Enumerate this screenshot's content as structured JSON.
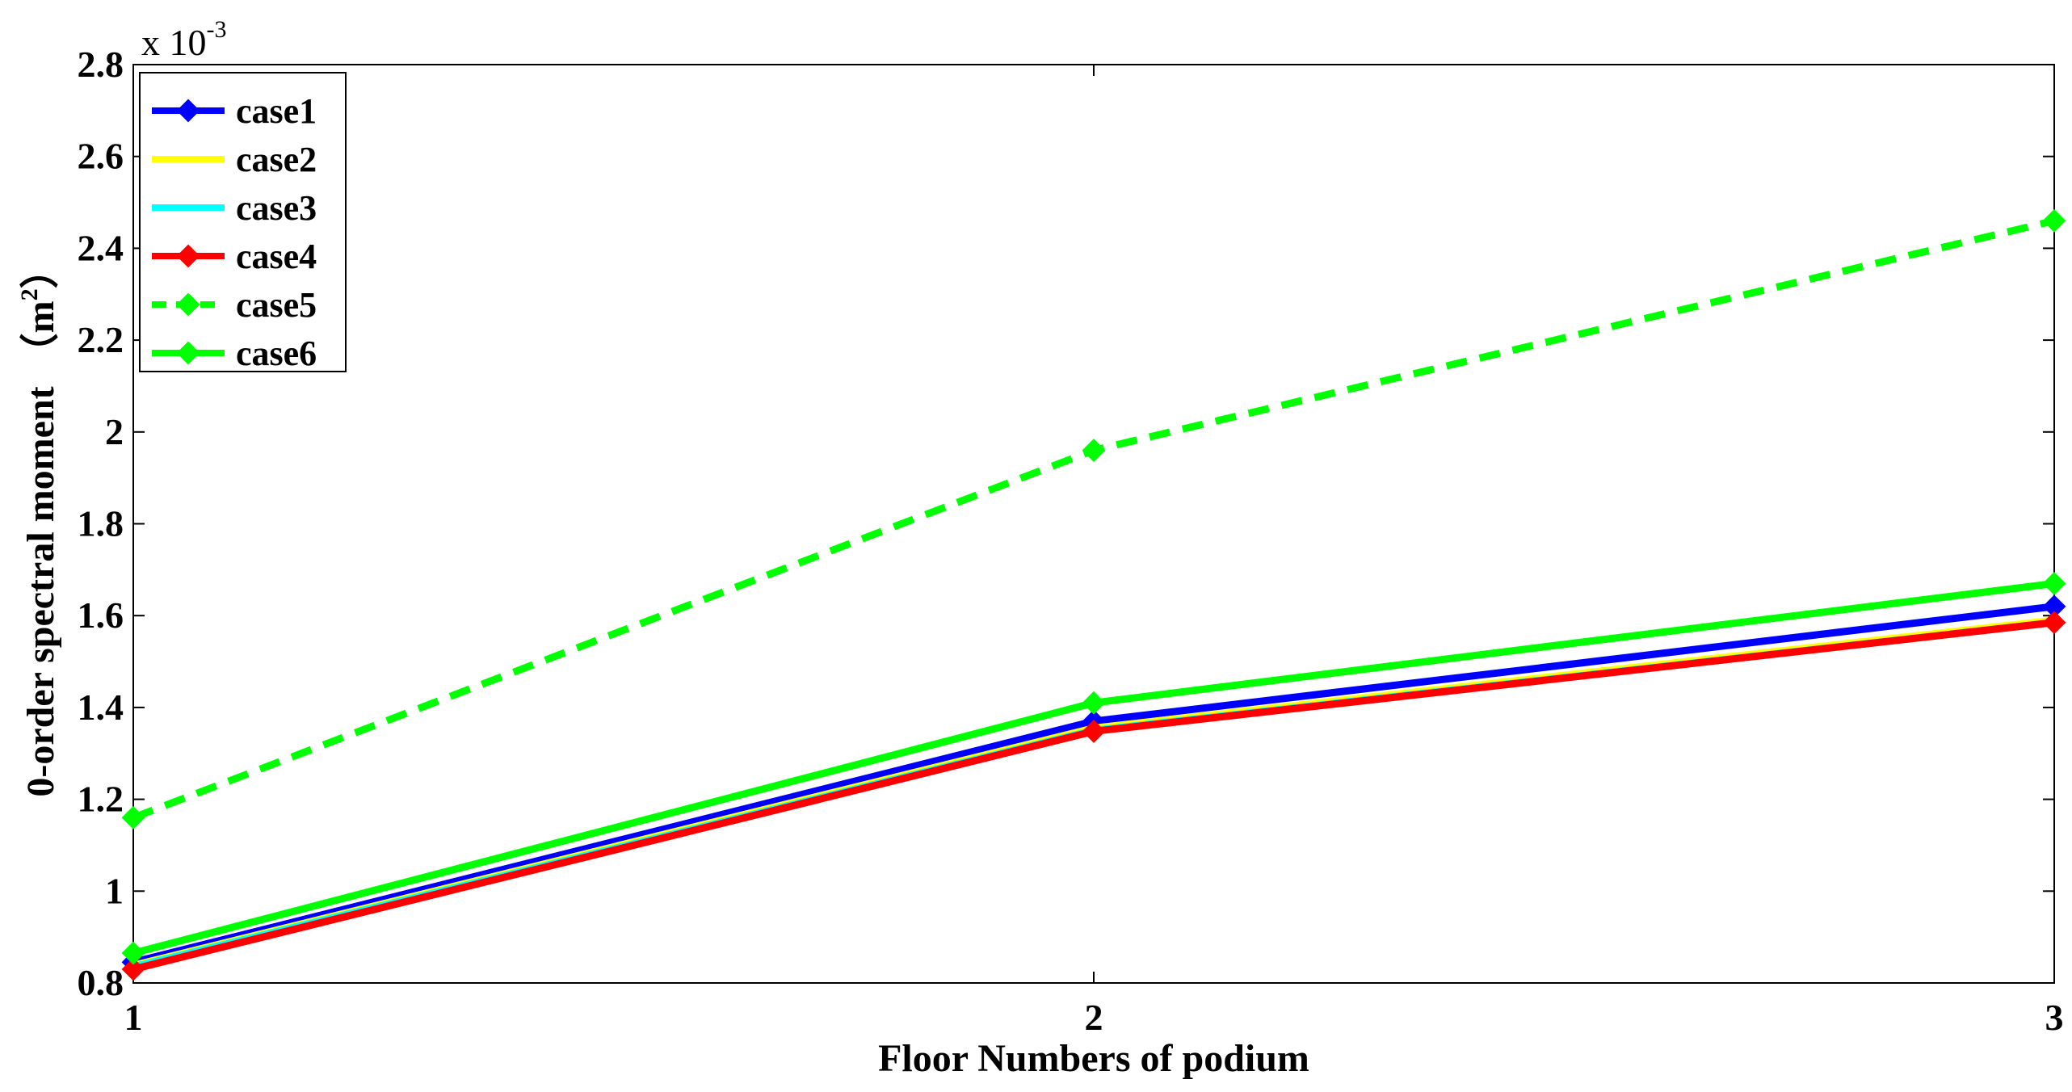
{
  "chart_data": {
    "type": "line",
    "xlabel": "Floor Numbers of podium",
    "ylabel": "0-order spectral moment （m²）",
    "ylabel_main": "0-order spectral moment",
    "ylabel_unit_open": "（m",
    "ylabel_unit_sup": "2",
    "ylabel_unit_close": "）",
    "y_multiplier_base": "x 10",
    "y_multiplier_exp": "-3",
    "x": [
      1,
      2,
      3
    ],
    "xticks": [
      "1",
      "2",
      "3"
    ],
    "xlim": [
      1,
      3
    ],
    "ylim": [
      0.8,
      2.8
    ],
    "yticks": [
      0.8,
      1,
      1.2,
      1.4,
      1.6,
      1.8,
      2,
      2.2,
      2.4,
      2.6,
      2.8
    ],
    "ytick_labels": [
      "0.8",
      "1",
      "1.2",
      "1.4",
      "1.6",
      "1.8",
      "2",
      "2.2",
      "2.4",
      "2.6",
      "2.8"
    ],
    "grid": false,
    "legend_position": "top-left",
    "series": [
      {
        "name": "case1",
        "values": [
          0.845,
          1.37,
          1.62
        ],
        "color": "#0000ff",
        "dash": "solid",
        "marker": "diamond"
      },
      {
        "name": "case2",
        "values": [
          0.838,
          1.355,
          1.59
        ],
        "color": "#ffff00",
        "dash": "solid",
        "marker": "none"
      },
      {
        "name": "case3",
        "values": [
          0.835,
          1.35,
          1.585
        ],
        "color": "#00ffff",
        "dash": "solid",
        "marker": "none"
      },
      {
        "name": "case4",
        "values": [
          0.83,
          1.348,
          1.585
        ],
        "color": "#ff0000",
        "dash": "solid",
        "marker": "diamond"
      },
      {
        "name": "case5",
        "values": [
          1.16,
          1.96,
          2.46
        ],
        "color": "#00ff00",
        "dash": "dashed",
        "marker": "diamond"
      },
      {
        "name": "case6",
        "values": [
          0.865,
          1.41,
          1.67
        ],
        "color": "#00ff00",
        "dash": "solid",
        "marker": "diamond"
      }
    ]
  }
}
